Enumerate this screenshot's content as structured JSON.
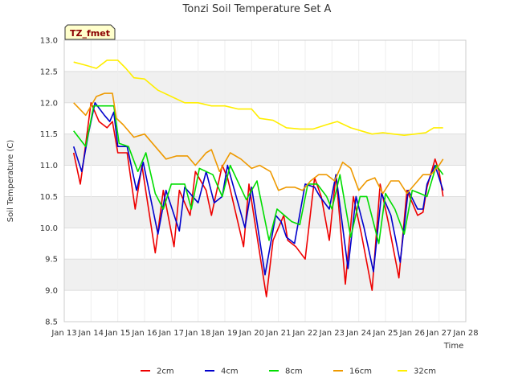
{
  "chart_data": {
    "type": "line",
    "title": "Tonzi Soil Temperature Set A",
    "xlabel": "Time",
    "ylabel": "Soil Temperature (C)",
    "badge": "TZ_fmet",
    "ylim": [
      8.5,
      13.0
    ],
    "yticks": [
      "8.5",
      "9.0",
      "9.5",
      "10.0",
      "10.5",
      "11.0",
      "11.5",
      "12.0",
      "12.5",
      "13.0"
    ],
    "xlim": [
      13,
      28
    ],
    "xticks": [
      "Jan 13",
      "Jan 14",
      "Jan 15",
      "Jan 16",
      "Jan 17",
      "Jan 18",
      "Jan 19",
      "Jan 20",
      "Jan 21",
      "Jan 22",
      "Jan 23",
      "Jan 24",
      "Jan 25",
      "Jan 26",
      "Jan 27",
      "Jan 28"
    ],
    "series": [
      {
        "name": "2cm",
        "color": "#ee0000",
        "x": [
          13.35,
          13.6,
          13.7,
          14.0,
          14.3,
          14.6,
          14.8,
          15.0,
          15.35,
          15.65,
          15.9,
          16.4,
          16.7,
          17.1,
          17.3,
          17.7,
          17.9,
          18.3,
          18.5,
          18.9,
          19.1,
          19.7,
          19.9,
          20.55,
          20.8,
          21.2,
          21.35,
          21.65,
          22.0,
          22.35,
          22.6,
          22.9,
          23.15,
          23.5,
          23.8,
          24.1,
          24.5,
          24.8,
          25.1,
          25.5,
          25.8,
          26.2,
          26.4,
          26.55,
          26.85,
          27.0,
          27.15
        ],
        "values": [
          11.2,
          10.7,
          11.0,
          12.0,
          11.7,
          11.6,
          11.7,
          11.2,
          11.2,
          10.3,
          11.0,
          9.6,
          10.6,
          9.7,
          10.6,
          10.2,
          10.9,
          10.6,
          10.2,
          11.0,
          10.8,
          9.7,
          10.7,
          8.9,
          9.8,
          10.2,
          9.8,
          9.7,
          9.5,
          10.8,
          10.5,
          9.8,
          10.85,
          9.1,
          10.5,
          9.9,
          9.0,
          10.7,
          10.1,
          9.2,
          10.6,
          10.2,
          10.25,
          10.65,
          11.1,
          10.9,
          10.5
        ]
      },
      {
        "name": "4cm",
        "color": "#0000cc",
        "x": [
          13.35,
          13.65,
          13.9,
          14.15,
          14.5,
          14.7,
          14.85,
          15.0,
          15.35,
          15.7,
          15.95,
          16.5,
          16.8,
          17.3,
          17.5,
          18.0,
          18.3,
          18.6,
          18.9,
          19.1,
          19.75,
          20.0,
          20.5,
          20.9,
          21.1,
          21.3,
          21.6,
          22.0,
          22.35,
          22.55,
          22.9,
          23.15,
          23.6,
          23.9,
          24.2,
          24.55,
          24.85,
          25.2,
          25.55,
          25.85,
          26.2,
          26.4,
          26.55,
          26.85,
          27.15
        ],
        "values": [
          11.3,
          10.9,
          11.5,
          12.0,
          11.8,
          11.7,
          11.85,
          11.3,
          11.3,
          10.6,
          11.05,
          9.9,
          10.6,
          9.95,
          10.65,
          10.4,
          10.9,
          10.4,
          10.5,
          11.0,
          10.0,
          10.65,
          9.25,
          10.2,
          10.1,
          9.85,
          9.75,
          10.7,
          10.65,
          10.5,
          10.3,
          10.85,
          9.35,
          10.5,
          10.0,
          9.3,
          10.55,
          10.2,
          9.45,
          10.6,
          10.3,
          10.3,
          10.7,
          11.0,
          10.6
        ]
      },
      {
        "name": "8cm",
        "color": "#00dd00",
        "x": [
          13.35,
          13.8,
          14.1,
          14.35,
          14.6,
          14.85,
          15.05,
          15.4,
          15.75,
          16.05,
          16.4,
          16.7,
          17.0,
          17.5,
          17.75,
          18.05,
          18.3,
          18.55,
          18.9,
          19.2,
          19.8,
          20.2,
          20.65,
          20.95,
          21.5,
          21.8,
          22.1,
          22.45,
          22.8,
          23.0,
          23.3,
          23.7,
          24.05,
          24.3,
          24.75,
          25.0,
          25.35,
          25.7,
          26.0,
          26.3,
          26.55,
          26.9,
          27.15
        ],
        "values": [
          11.55,
          11.3,
          11.95,
          11.95,
          11.95,
          11.95,
          11.35,
          11.3,
          10.9,
          11.2,
          10.55,
          10.3,
          10.7,
          10.7,
          10.3,
          10.95,
          10.9,
          10.85,
          10.5,
          11.0,
          10.45,
          10.75,
          9.8,
          10.3,
          10.1,
          10.05,
          10.7,
          10.7,
          10.5,
          10.3,
          10.85,
          9.85,
          10.5,
          10.5,
          9.75,
          10.55,
          10.3,
          9.9,
          10.6,
          10.55,
          10.5,
          11.0,
          10.85
        ]
      },
      {
        "name": "16cm",
        "color": "#ee9900",
        "x": [
          13.35,
          13.8,
          14.2,
          14.5,
          14.8,
          14.95,
          15.2,
          15.6,
          16.0,
          16.4,
          16.8,
          17.2,
          17.6,
          17.9,
          18.3,
          18.5,
          18.8,
          19.2,
          19.6,
          20.0,
          20.3,
          20.7,
          21.0,
          21.3,
          21.6,
          21.9,
          22.2,
          22.5,
          22.8,
          23.1,
          23.4,
          23.7,
          24.0,
          24.3,
          24.6,
          24.9,
          25.2,
          25.5,
          25.8,
          26.1,
          26.4,
          26.7,
          27.0,
          27.15
        ],
        "values": [
          12.0,
          11.8,
          12.1,
          12.15,
          12.15,
          11.75,
          11.65,
          11.45,
          11.5,
          11.3,
          11.1,
          11.15,
          11.15,
          11.0,
          11.2,
          11.25,
          10.9,
          11.2,
          11.1,
          10.95,
          11.0,
          10.9,
          10.6,
          10.65,
          10.65,
          10.6,
          10.75,
          10.85,
          10.85,
          10.75,
          11.05,
          10.95,
          10.6,
          10.75,
          10.8,
          10.55,
          10.75,
          10.75,
          10.55,
          10.7,
          10.85,
          10.85,
          11.0,
          11.1
        ]
      },
      {
        "name": "32cm",
        "color": "#ffee00",
        "x": [
          13.35,
          13.8,
          14.2,
          14.6,
          15.0,
          15.3,
          15.6,
          16.0,
          16.5,
          17.0,
          17.5,
          18.0,
          18.5,
          19.0,
          19.5,
          20.0,
          20.3,
          20.8,
          21.3,
          21.8,
          22.3,
          22.8,
          23.2,
          23.7,
          24.1,
          24.5,
          24.9,
          25.3,
          25.7,
          26.1,
          26.5,
          26.8,
          27.15
        ],
        "values": [
          12.65,
          12.6,
          12.55,
          12.68,
          12.68,
          12.55,
          12.4,
          12.38,
          12.2,
          12.1,
          12.0,
          12.0,
          11.95,
          11.95,
          11.9,
          11.9,
          11.75,
          11.72,
          11.6,
          11.58,
          11.58,
          11.65,
          11.7,
          11.6,
          11.55,
          11.5,
          11.52,
          11.5,
          11.48,
          11.5,
          11.52,
          11.6,
          11.6
        ]
      }
    ]
  }
}
